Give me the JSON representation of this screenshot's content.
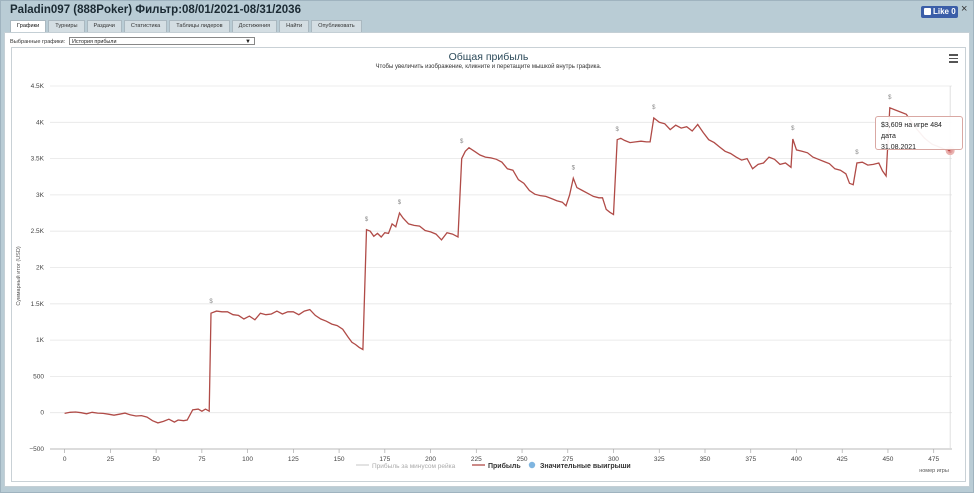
{
  "window": {
    "title": "Paladin097 (888Poker) Фильтр:08/01/2021-08/31/2036",
    "like_label": "Like 0",
    "close_glyph": "×"
  },
  "tabs": [
    "Графики",
    "Турниры",
    "Раздачи",
    "Статистика",
    "Таблицы лидеров",
    "Достижения",
    "Найти",
    "Опубликовать"
  ],
  "selector": {
    "label": "Выбранные графики:",
    "value": "История прибыли"
  },
  "chart_header": {
    "title": "Общая прибыль",
    "subtitle": "Чтобы увеличить изображение, кликните и перетащите мышкой внутрь графика."
  },
  "tooltip": {
    "line1": "$3,609 на игре 484 дата",
    "line2": "31.08.2021"
  },
  "legend": {
    "items": [
      "Прибыль за минусом рейка",
      "Прибыль",
      "Значительные выигрыши"
    ]
  },
  "chart_data": {
    "type": "line",
    "title": "Общая прибыль",
    "ylabel": "Суммарный итог (USD)",
    "xlabel": "номер игры",
    "xlim": [
      -8,
      485
    ],
    "ylim": [
      -500,
      4500
    ],
    "x_ticks": [
      0,
      25,
      50,
      75,
      100,
      125,
      150,
      175,
      200,
      225,
      250,
      275,
      300,
      325,
      350,
      375,
      400,
      425,
      450,
      475
    ],
    "y_ticks": [
      -500,
      0,
      500,
      1000,
      1500,
      2000,
      2500,
      3000,
      3500,
      4000,
      4500
    ],
    "y_tick_labels": [
      "−500",
      "0",
      "500",
      "1K",
      "1.5K",
      "2K",
      "2.5K",
      "3K",
      "3.5K",
      "4K",
      "4.5K"
    ],
    "colors": {
      "profit": "#b04b47",
      "grid": "#e6e6e6",
      "marker": "#7fb5e0"
    },
    "marker_label": "$",
    "series": [
      {
        "name": "Прибыль",
        "points": [
          [
            0,
            -10
          ],
          [
            3,
            5
          ],
          [
            6,
            10
          ],
          [
            9,
            0
          ],
          [
            12,
            -15
          ],
          [
            15,
            5
          ],
          [
            18,
            -5
          ],
          [
            21,
            -10
          ],
          [
            24,
            -20
          ],
          [
            27,
            -35
          ],
          [
            30,
            -20
          ],
          [
            33,
            -5
          ],
          [
            36,
            -30
          ],
          [
            39,
            -45
          ],
          [
            42,
            -40
          ],
          [
            45,
            -60
          ],
          [
            48,
            -110
          ],
          [
            51,
            -140
          ],
          [
            54,
            -120
          ],
          [
            57,
            -90
          ],
          [
            60,
            -130
          ],
          [
            62,
            -100
          ],
          [
            65,
            -110
          ],
          [
            67,
            -100
          ],
          [
            70,
            40
          ],
          [
            73,
            50
          ],
          [
            75,
            20
          ],
          [
            77,
            50
          ],
          [
            79,
            20
          ],
          [
            80,
            1370
          ],
          [
            83,
            1400
          ],
          [
            86,
            1390
          ],
          [
            89,
            1390
          ],
          [
            92,
            1350
          ],
          [
            95,
            1340
          ],
          [
            98,
            1290
          ],
          [
            101,
            1330
          ],
          [
            104,
            1280
          ],
          [
            107,
            1370
          ],
          [
            110,
            1350
          ],
          [
            113,
            1360
          ],
          [
            116,
            1400
          ],
          [
            119,
            1360
          ],
          [
            122,
            1390
          ],
          [
            125,
            1390
          ],
          [
            128,
            1350
          ],
          [
            131,
            1400
          ],
          [
            134,
            1420
          ],
          [
            137,
            1340
          ],
          [
            140,
            1290
          ],
          [
            143,
            1260
          ],
          [
            146,
            1220
          ],
          [
            149,
            1200
          ],
          [
            152,
            1150
          ],
          [
            155,
            1040
          ],
          [
            157,
            970
          ],
          [
            159,
            940
          ],
          [
            161,
            900
          ],
          [
            163,
            870
          ],
          [
            165,
            2520
          ],
          [
            167,
            2500
          ],
          [
            169,
            2430
          ],
          [
            171,
            2470
          ],
          [
            173,
            2420
          ],
          [
            175,
            2480
          ],
          [
            177,
            2470
          ],
          [
            179,
            2600
          ],
          [
            181,
            2560
          ],
          [
            183,
            2750
          ],
          [
            185,
            2680
          ],
          [
            188,
            2600
          ],
          [
            191,
            2580
          ],
          [
            194,
            2570
          ],
          [
            197,
            2510
          ],
          [
            200,
            2490
          ],
          [
            203,
            2460
          ],
          [
            206,
            2380
          ],
          [
            209,
            2480
          ],
          [
            212,
            2460
          ],
          [
            215,
            2420
          ],
          [
            217,
            3500
          ],
          [
            219,
            3600
          ],
          [
            221,
            3650
          ],
          [
            224,
            3600
          ],
          [
            227,
            3550
          ],
          [
            230,
            3520
          ],
          [
            233,
            3510
          ],
          [
            236,
            3490
          ],
          [
            239,
            3450
          ],
          [
            242,
            3360
          ],
          [
            245,
            3340
          ],
          [
            248,
            3210
          ],
          [
            251,
            3160
          ],
          [
            254,
            3060
          ],
          [
            257,
            3010
          ],
          [
            260,
            2990
          ],
          [
            263,
            2980
          ],
          [
            266,
            2950
          ],
          [
            269,
            2920
          ],
          [
            272,
            2900
          ],
          [
            274,
            2850
          ],
          [
            276,
            3000
          ],
          [
            278,
            3230
          ],
          [
            280,
            3100
          ],
          [
            283,
            3060
          ],
          [
            286,
            3020
          ],
          [
            289,
            2980
          ],
          [
            292,
            2960
          ],
          [
            294,
            2960
          ],
          [
            296,
            2800
          ],
          [
            298,
            2760
          ],
          [
            300,
            2730
          ],
          [
            302,
            3760
          ],
          [
            304,
            3780
          ],
          [
            306,
            3750
          ],
          [
            309,
            3720
          ],
          [
            312,
            3730
          ],
          [
            315,
            3740
          ],
          [
            318,
            3730
          ],
          [
            320,
            3730
          ],
          [
            322,
            4060
          ],
          [
            325,
            4000
          ],
          [
            328,
            3980
          ],
          [
            331,
            3900
          ],
          [
            334,
            3960
          ],
          [
            337,
            3920
          ],
          [
            340,
            3940
          ],
          [
            343,
            3880
          ],
          [
            346,
            3970
          ],
          [
            349,
            3860
          ],
          [
            352,
            3760
          ],
          [
            355,
            3720
          ],
          [
            358,
            3660
          ],
          [
            361,
            3600
          ],
          [
            364,
            3570
          ],
          [
            367,
            3520
          ],
          [
            370,
            3480
          ],
          [
            373,
            3500
          ],
          [
            376,
            3360
          ],
          [
            379,
            3420
          ],
          [
            382,
            3440
          ],
          [
            385,
            3520
          ],
          [
            388,
            3490
          ],
          [
            391,
            3420
          ],
          [
            394,
            3440
          ],
          [
            397,
            3380
          ],
          [
            398,
            3770
          ],
          [
            400,
            3620
          ],
          [
            403,
            3600
          ],
          [
            406,
            3580
          ],
          [
            409,
            3520
          ],
          [
            412,
            3490
          ],
          [
            415,
            3460
          ],
          [
            418,
            3430
          ],
          [
            421,
            3360
          ],
          [
            424,
            3340
          ],
          [
            427,
            3290
          ],
          [
            429,
            3160
          ],
          [
            431,
            3140
          ],
          [
            433,
            3440
          ],
          [
            436,
            3450
          ],
          [
            439,
            3410
          ],
          [
            442,
            3420
          ],
          [
            445,
            3440
          ],
          [
            447,
            3330
          ],
          [
            449,
            3260
          ],
          [
            451,
            4200
          ],
          [
            454,
            4170
          ],
          [
            457,
            4140
          ],
          [
            460,
            4110
          ],
          [
            463,
            4000
          ],
          [
            466,
            3900
          ],
          [
            470,
            3780
          ],
          [
            474,
            3700
          ],
          [
            478,
            3660
          ],
          [
            481,
            3630
          ],
          [
            484,
            3609
          ]
        ]
      }
    ],
    "significant_wins": [
      [
        80,
        1430
      ],
      [
        165,
        2560
      ],
      [
        183,
        2790
      ],
      [
        217,
        3630
      ],
      [
        278,
        3270
      ],
      [
        302,
        3800
      ],
      [
        322,
        4100
      ],
      [
        398,
        3810
      ],
      [
        433,
        3480
      ],
      [
        451,
        4240
      ]
    ],
    "highlight": {
      "x": 484,
      "y": 3609
    }
  }
}
